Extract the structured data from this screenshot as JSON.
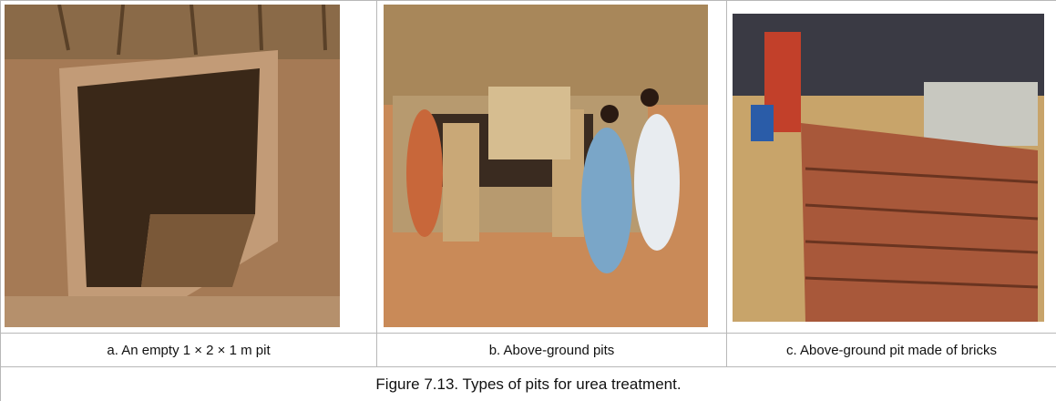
{
  "figure": {
    "panels": [
      {
        "caption": "a. An empty 1 × 2 × 1 m pit"
      },
      {
        "caption": "b. Above-ground pits"
      },
      {
        "caption": "c. Above-ground pit made of bricks"
      }
    ],
    "caption": "Figure 7.13.  Types of pits for urea treatment."
  }
}
